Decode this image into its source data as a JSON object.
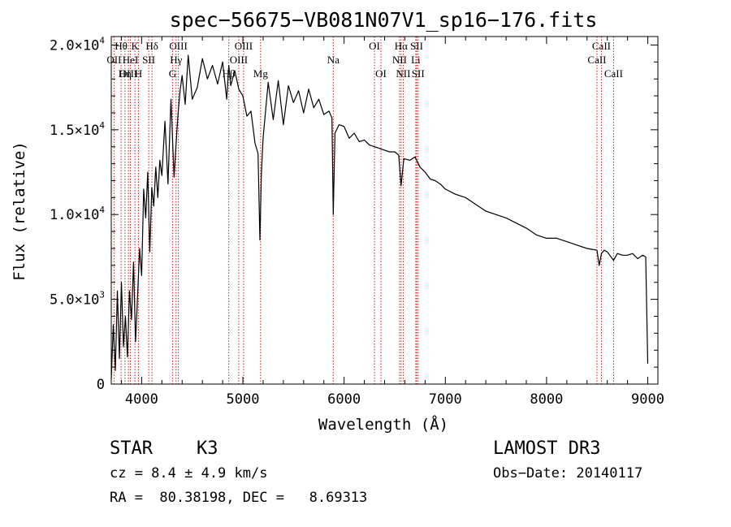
{
  "chart_data": {
    "type": "line",
    "title": "spec−56675−VB081N07V1_sp16−176.fits",
    "xlabel": "Wavelength (Å)",
    "ylabel": "Flux (relative)",
    "xlim": [
      3700,
      9100
    ],
    "ylim": [
      0,
      20500
    ],
    "x_ticks": [
      4000,
      5000,
      6000,
      7000,
      8000,
      9000
    ],
    "y_ticks": [
      {
        "value": 0,
        "label": "0",
        "exp": ""
      },
      {
        "value": 5000,
        "label": "5.0×10",
        "exp": "3"
      },
      {
        "value": 10000,
        "label": "1.0×10",
        "exp": "4"
      },
      {
        "value": 15000,
        "label": "1.5×10",
        "exp": "4"
      },
      {
        "value": 20000,
        "label": "2.0×10",
        "exp": "4"
      }
    ],
    "series": [
      {
        "name": "spectrum",
        "x": [
          3700,
          3720,
          3740,
          3760,
          3780,
          3800,
          3820,
          3840,
          3860,
          3880,
          3900,
          3920,
          3940,
          3960,
          3980,
          4000,
          4020,
          4040,
          4060,
          4080,
          4100,
          4120,
          4140,
          4160,
          4180,
          4200,
          4230,
          4260,
          4290,
          4320,
          4340,
          4360,
          4380,
          4400,
          4430,
          4460,
          4500,
          4550,
          4600,
          4650,
          4700,
          4750,
          4800,
          4840,
          4861,
          4880,
          4920,
          4960,
          5000,
          5040,
          5080,
          5120,
          5150,
          5168,
          5183,
          5200,
          5250,
          5300,
          5350,
          5400,
          5450,
          5500,
          5550,
          5600,
          5650,
          5700,
          5750,
          5800,
          5850,
          5880,
          5893,
          5910,
          5950,
          6000,
          6050,
          6100,
          6150,
          6200,
          6250,
          6300,
          6350,
          6400,
          6450,
          6500,
          6540,
          6563,
          6590,
          6650,
          6700,
          6750,
          6800,
          6850,
          6900,
          6950,
          7000,
          7100,
          7200,
          7300,
          7400,
          7500,
          7600,
          7700,
          7800,
          7900,
          8000,
          8100,
          8200,
          8300,
          8400,
          8498,
          8520,
          8542,
          8570,
          8600,
          8662,
          8700,
          8750,
          8800,
          8850,
          8900,
          8950,
          8980,
          9000
        ],
        "y": [
          300,
          3500,
          800,
          5500,
          1500,
          6000,
          2200,
          4000,
          1600,
          5500,
          3800,
          7200,
          2500,
          5200,
          8000,
          6400,
          11500,
          9800,
          12500,
          7800,
          11600,
          10500,
          12800,
          11000,
          13200,
          12300,
          15500,
          11800,
          16800,
          12200,
          14200,
          16000,
          17300,
          18200,
          16500,
          19400,
          16800,
          17500,
          19200,
          18000,
          18800,
          17700,
          19000,
          16800,
          18800,
          17600,
          18500,
          17400,
          17000,
          15800,
          16100,
          14200,
          13600,
          8500,
          12400,
          14500,
          17800,
          15600,
          17900,
          15300,
          17600,
          16600,
          17300,
          16000,
          17400,
          16300,
          16800,
          15900,
          16100,
          15700,
          10000,
          14800,
          15300,
          15200,
          14500,
          14800,
          14300,
          14400,
          14100,
          14000,
          13900,
          13800,
          13700,
          13700,
          13500,
          11700,
          13300,
          13200,
          13400,
          12800,
          12500,
          12100,
          12000,
          11800,
          11500,
          11200,
          11000,
          10600,
          10200,
          10000,
          9800,
          9500,
          9200,
          8800,
          8600,
          8600,
          8400,
          8200,
          8000,
          7900,
          7000,
          7700,
          7900,
          7800,
          7300,
          7700,
          7600,
          7600,
          7700,
          7400,
          7600,
          7500,
          1200
        ]
      }
    ],
    "spectral_lines": [
      {
        "name": "OII",
        "wavelength": 3727,
        "row": 2
      },
      {
        "name": "Hθ",
        "wavelength": 3797,
        "row": 1
      },
      {
        "name": "OIII",
        "wavelength": 3869,
        "row": 3
      },
      {
        "name": "HeI",
        "wavelength": 3889,
        "row": 2
      },
      {
        "name": "Hη",
        "wavelength": 3835,
        "row": 3
      },
      {
        "name": "K",
        "wavelength": 3934,
        "row": 1
      },
      {
        "name": "SII",
        "wavelength": 4070,
        "row": 2
      },
      {
        "name": "H",
        "wavelength": 3968,
        "row": 3
      },
      {
        "name": "Hδ",
        "wavelength": 4102,
        "row": 1
      },
      {
        "name": "OIII",
        "wavelength": 4363,
        "row": 1
      },
      {
        "name": "Hγ",
        "wavelength": 4340,
        "row": 2
      },
      {
        "name": "G",
        "wavelength": 4305,
        "row": 3
      },
      {
        "name": "OIII",
        "wavelength": 5007,
        "row": 1
      },
      {
        "name": "OIII",
        "wavelength": 4959,
        "row": 2
      },
      {
        "name": "Hβ",
        "wavelength": 4861,
        "row": 3
      },
      {
        "name": "Mg",
        "wavelength": 5175,
        "row": 3
      },
      {
        "name": "Na",
        "wavelength": 5893,
        "row": 2
      },
      {
        "name": "OI",
        "wavelength": 6300,
        "row": 1
      },
      {
        "name": "OI",
        "wavelength": 6364,
        "row": 3
      },
      {
        "name": "Hα",
        "wavelength": 6563,
        "row": 1
      },
      {
        "name": "NII",
        "wavelength": 6548,
        "row": 2
      },
      {
        "name": "NII",
        "wavelength": 6584,
        "row": 3
      },
      {
        "name": "SII",
        "wavelength": 6717,
        "row": 1
      },
      {
        "name": "Li",
        "wavelength": 6708,
        "row": 2
      },
      {
        "name": "SII",
        "wavelength": 6731,
        "row": 3
      },
      {
        "name": "CaII",
        "wavelength": 8542,
        "row": 1
      },
      {
        "name": "CaII",
        "wavelength": 8498,
        "row": 2
      },
      {
        "name": "CaII",
        "wavelength": 8662,
        "row": 3
      }
    ]
  },
  "info": {
    "object_class": "STAR",
    "subclass": "K3",
    "survey": "LAMOST DR3",
    "redshift": "cz = 8.4 ± 4.9 km/s",
    "obs_date": "Obs−Date: 20140117",
    "coords": "RA =  80.38198, DEC =   8.69313"
  }
}
